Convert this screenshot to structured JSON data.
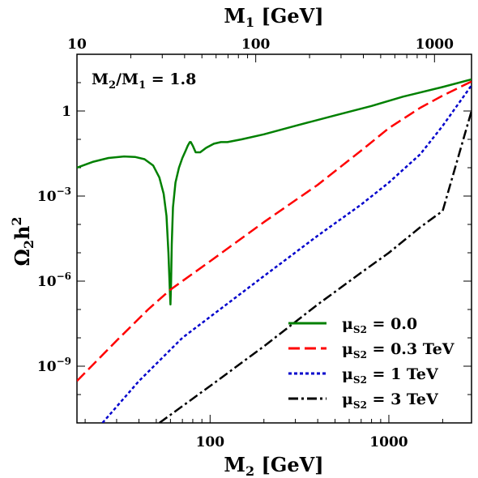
{
  "chart_data": {
    "type": "line",
    "x_scale": "log",
    "y_scale": "log",
    "xlabel": "M",
    "xlabel_sub": "2",
    "xlabel_unit": " [GeV]",
    "top_xlabel": "M",
    "top_xlabel_sub": "1",
    "top_xlabel_unit": " [GeV]",
    "ylabel": "Ω",
    "ylabel_sub": "2",
    "ylabel_h": "h",
    "ylabel_sup": "2",
    "xlim": [
      18,
      2900
    ],
    "ylim": [
      1e-11,
      100
    ],
    "top_xlim": [
      10,
      1611
    ],
    "x_ticks": [
      {
        "value": 100,
        "label": "100"
      },
      {
        "value": 1000,
        "label": "1000"
      }
    ],
    "top_ticks": [
      {
        "value": 10,
        "label": "10"
      },
      {
        "value": 100,
        "label": "100"
      },
      {
        "value": 1000,
        "label": "1000"
      }
    ],
    "y_ticks": [
      {
        "value": 1,
        "label": "1",
        "base": "",
        "exp": ""
      },
      {
        "value": 0.001,
        "label": "",
        "base": "10",
        "exp": "−3"
      },
      {
        "value": 1e-06,
        "label": "",
        "base": "10",
        "exp": "−6"
      },
      {
        "value": 1e-09,
        "label": "",
        "base": "10",
        "exp": "−9"
      }
    ],
    "annotation": {
      "text_M": "M",
      "sub1": "2",
      "slash": "/M",
      "sub2": "1",
      "rest": " = 1.8"
    },
    "legend_position": "lower-right",
    "series": [
      {
        "name": "μS2 = 0.0",
        "label_mu": "μ",
        "label_sub": "S2",
        "label_rest": " = 0.0",
        "color": "#008000",
        "style": "solid",
        "x": [
          18,
          22,
          27,
          33,
          38,
          43,
          48,
          52,
          55,
          57,
          58.5,
          59.5,
          60,
          60.5,
          61,
          62,
          64,
          67,
          70,
          73,
          75,
          77,
          78,
          80,
          83,
          88,
          95,
          105,
          115,
          125,
          150,
          200,
          300,
          500,
          800,
          1200,
          2000,
          2900
        ],
        "y": [
          0.01,
          0.016,
          0.022,
          0.025,
          0.024,
          0.02,
          0.012,
          0.0045,
          0.0012,
          0.0002,
          1e-05,
          5e-07,
          1.5e-07,
          1e-06,
          2e-05,
          0.0004,
          0.003,
          0.01,
          0.022,
          0.04,
          0.06,
          0.08,
          0.08,
          0.06,
          0.035,
          0.035,
          0.05,
          0.07,
          0.08,
          0.08,
          0.1,
          0.15,
          0.3,
          0.7,
          1.5,
          3.2,
          7,
          13
        ]
      },
      {
        "name": "μS2 = 0.3 TeV",
        "label_mu": "μ",
        "label_sub": "S2",
        "label_rest": " = 0.3 TeV",
        "color": "#ff0000",
        "style": "dashed",
        "x": [
          18,
          30,
          45,
          60,
          100,
          200,
          400,
          700,
          1000,
          1500,
          2000,
          2900
        ],
        "y": [
          3e-10,
          8e-09,
          1e-07,
          5e-07,
          5e-06,
          0.00012,
          0.0025,
          0.04,
          0.25,
          1.3,
          3.5,
          11
        ]
      },
      {
        "name": "μS2 = 1 TeV",
        "label_mu": "μ",
        "label_sub": "S2",
        "label_rest": " = 1 TeV",
        "color": "#0000cc",
        "style": "dotted",
        "x": [
          25,
          40,
          70,
          100,
          200,
          400,
          700,
          1000,
          1500,
          2000,
          2900
        ],
        "y": [
          1e-11,
          3e-10,
          1e-08,
          5.5e-08,
          1.5e-06,
          4e-05,
          0.0005,
          0.003,
          0.03,
          0.3,
          8
        ]
      },
      {
        "name": "μS2 = 3 TeV",
        "label_mu": "μ",
        "label_sub": "S2",
        "label_rest": " = 3 TeV",
        "color": "#000000",
        "style": "dashdot",
        "x": [
          52,
          100,
          200,
          400,
          700,
          1000,
          1500,
          2000,
          2900
        ],
        "y": [
          1e-11,
          2e-10,
          5e-09,
          1.5e-07,
          2e-06,
          1e-05,
          8e-05,
          0.0003,
          1
        ]
      }
    ]
  }
}
